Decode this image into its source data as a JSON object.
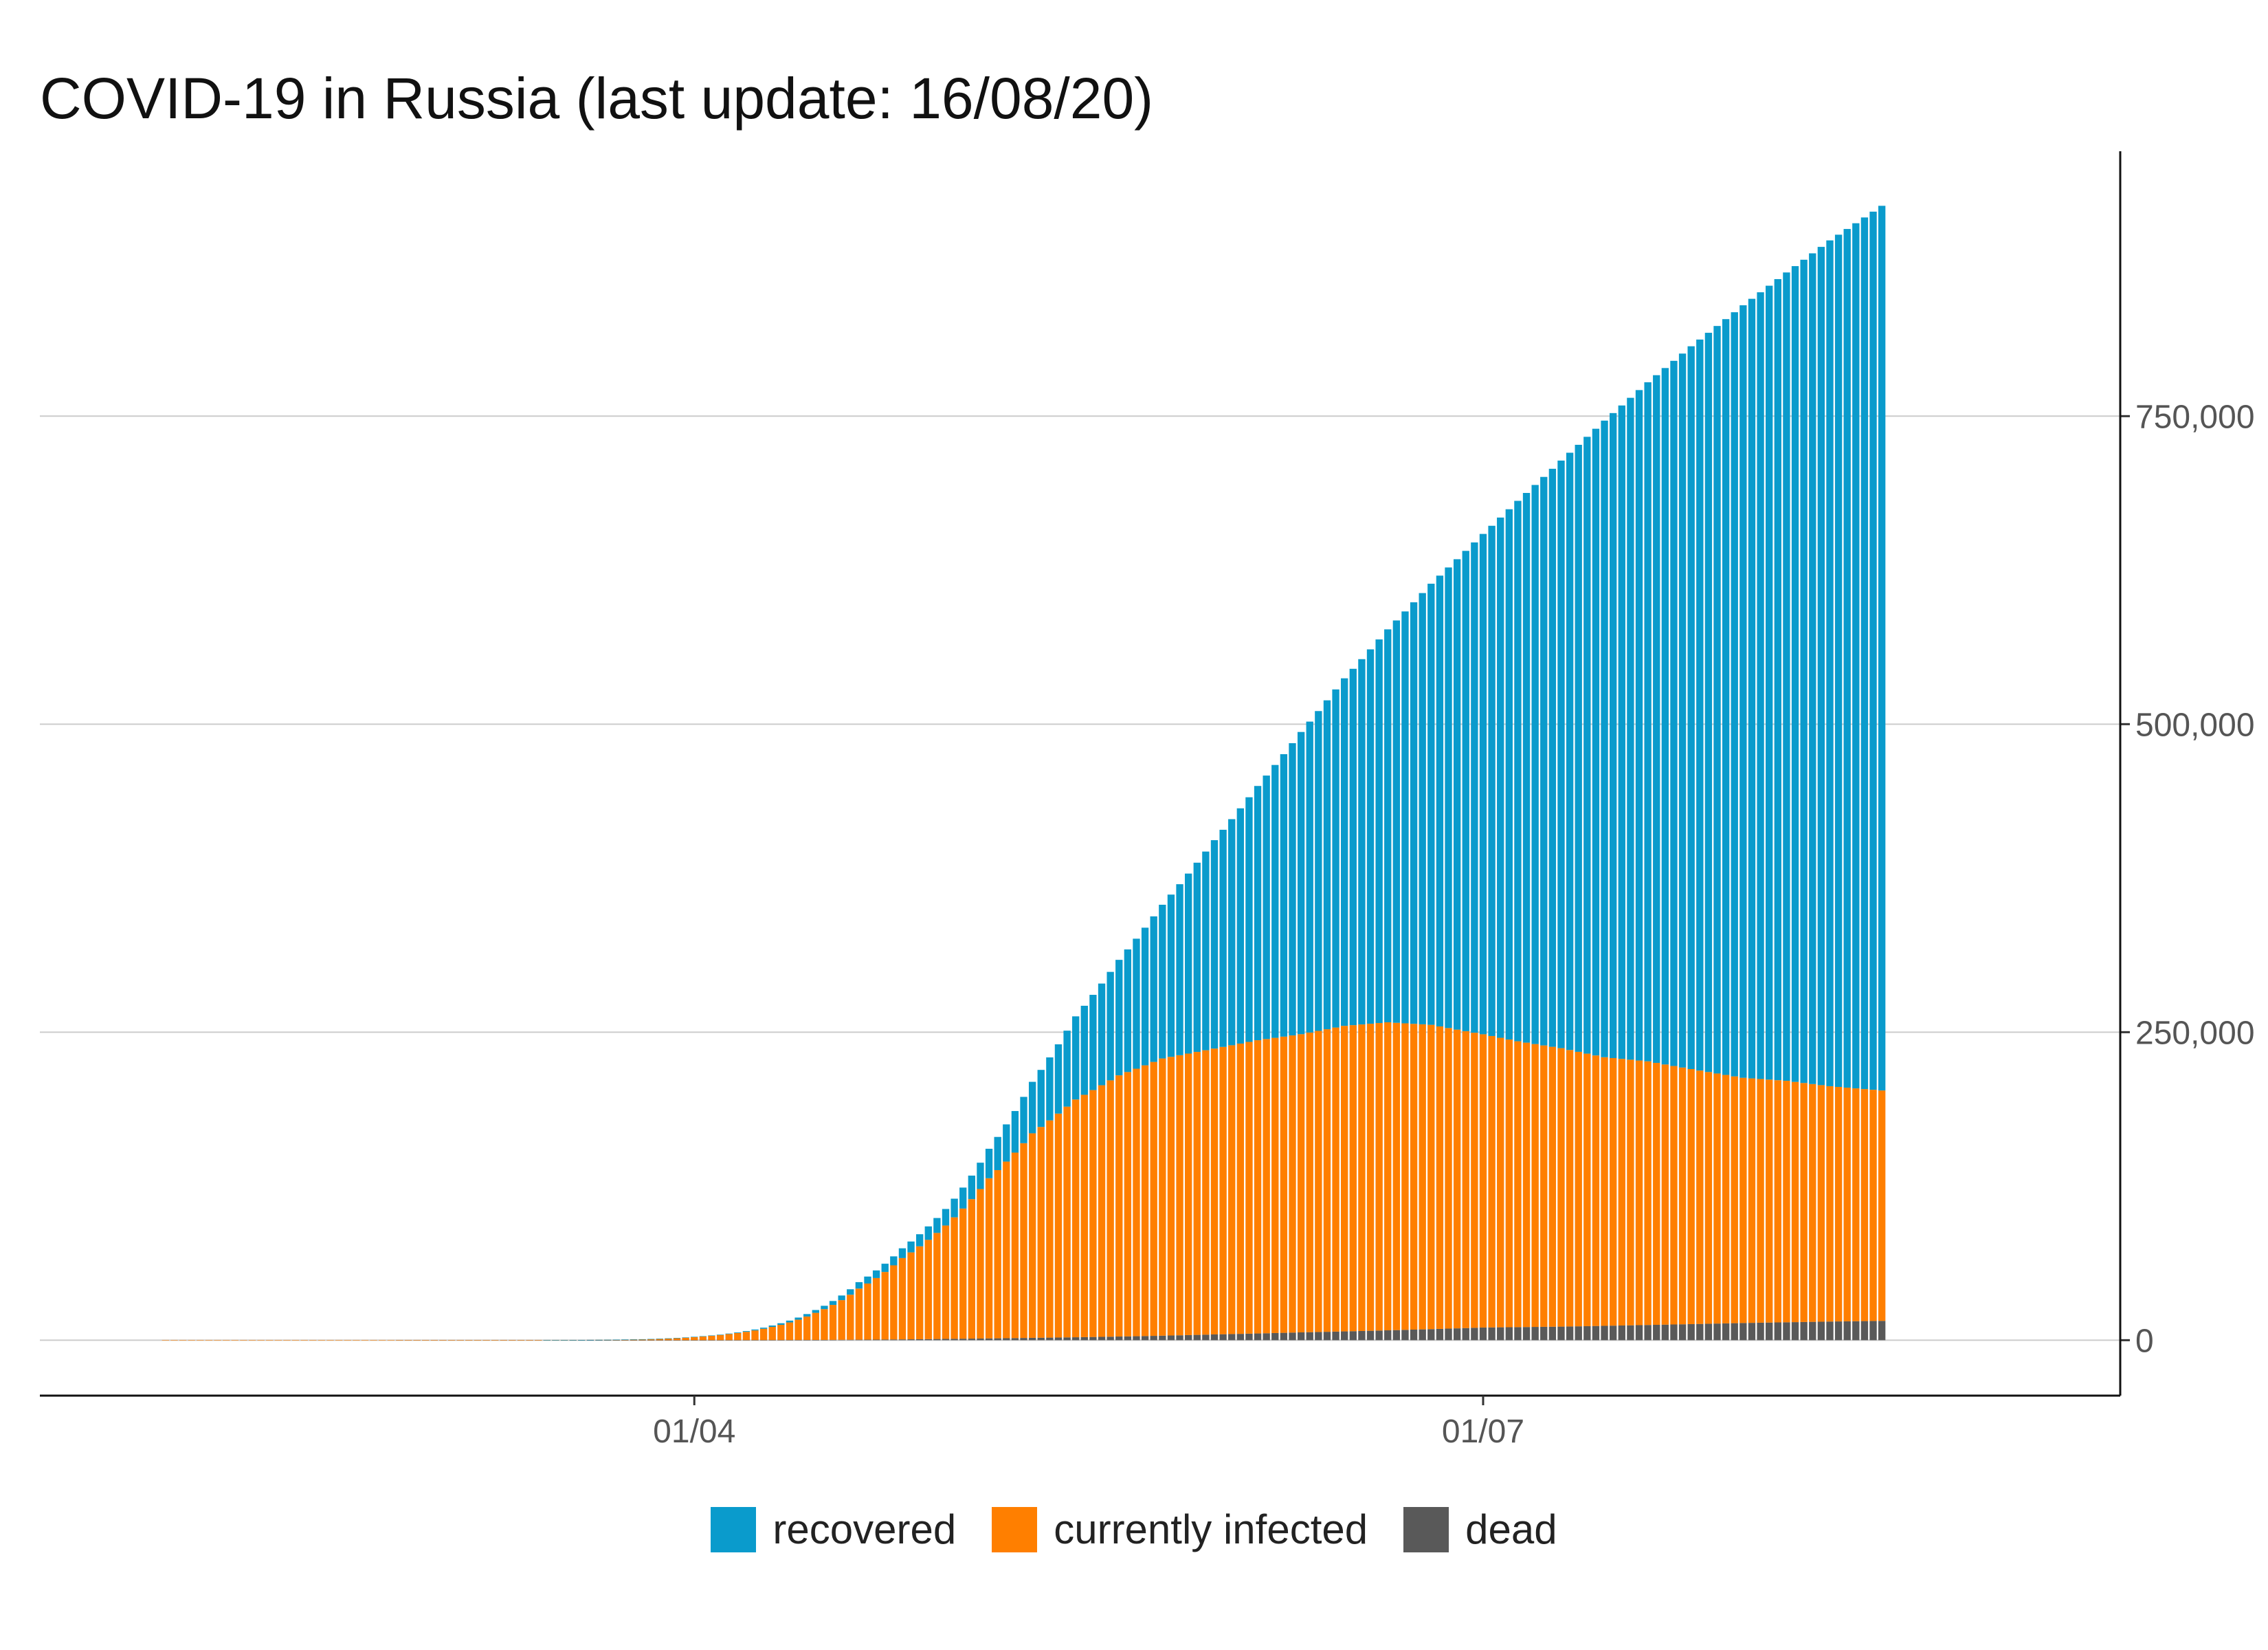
{
  "chart_data": {
    "type": "bar",
    "stacked": true,
    "title": "COVID-19 in Russia (last update: 16/08/20)",
    "xlabel": "",
    "ylabel": "",
    "x_start": "2020-01-31",
    "x_end": "2020-08-16",
    "x_ticks": [
      {
        "date": "2020-04-01",
        "label": "01/04"
      },
      {
        "date": "2020-07-01",
        "label": "01/07"
      }
    ],
    "ylim": [
      -45000,
      965000
    ],
    "y_ticks": [
      {
        "value": 0,
        "label": "0"
      },
      {
        "value": 250000,
        "label": "250,000"
      },
      {
        "value": 500000,
        "label": "500,000"
      },
      {
        "value": 750000,
        "label": "750,000"
      }
    ],
    "y_axis_position": "right",
    "grid": "horizontal",
    "legend_position": "bottom",
    "colors": {
      "recovered": "#0a9bcc",
      "infected": "#ff7f00",
      "dead": "#595959"
    },
    "series_order": [
      "dead",
      "infected",
      "recovered"
    ],
    "legend": [
      {
        "key": "recovered",
        "label": "recovered"
      },
      {
        "key": "infected",
        "label": "currently infected"
      },
      {
        "key": "dead",
        "label": "dead"
      }
    ],
    "total_knots": [
      [
        "2020-01-31",
        2
      ],
      [
        "2020-03-01",
        3
      ],
      [
        "2020-03-10",
        20
      ],
      [
        "2020-03-20",
        253
      ],
      [
        "2020-03-25",
        658
      ],
      [
        "2020-04-01",
        2777
      ],
      [
        "2020-04-05",
        5389
      ],
      [
        "2020-04-10",
        11917
      ],
      [
        "2020-04-15",
        24490
      ],
      [
        "2020-04-20",
        47121
      ],
      [
        "2020-04-25",
        74588
      ],
      [
        "2020-04-30",
        106498
      ],
      [
        "2020-05-05",
        155370
      ],
      [
        "2020-05-10",
        209688
      ],
      [
        "2020-05-15",
        262843
      ],
      [
        "2020-05-20",
        308705
      ],
      [
        "2020-05-25",
        353427
      ],
      [
        "2020-05-31",
        405843
      ],
      [
        "2020-06-05",
        449834
      ],
      [
        "2020-06-10",
        493657
      ],
      [
        "2020-06-15",
        537210
      ],
      [
        "2020-06-20",
        576952
      ],
      [
        "2020-06-25",
        613994
      ],
      [
        "2020-07-01",
        654405
      ],
      [
        "2020-07-05",
        681251
      ],
      [
        "2020-07-10",
        713936
      ],
      [
        "2020-07-15",
        746369
      ],
      [
        "2020-07-20",
        777486
      ],
      [
        "2020-07-25",
        806720
      ],
      [
        "2020-07-31",
        839981
      ],
      [
        "2020-08-05",
        866627
      ],
      [
        "2020-08-10",
        892654
      ],
      [
        "2020-08-16",
        920719
      ]
    ],
    "infected_knots": [
      [
        "2020-01-31",
        2
      ],
      [
        "2020-03-01",
        3
      ],
      [
        "2020-03-10",
        20
      ],
      [
        "2020-03-20",
        240
      ],
      [
        "2020-03-25",
        630
      ],
      [
        "2020-04-01",
        2560
      ],
      [
        "2020-04-05",
        4950
      ],
      [
        "2020-04-10",
        10700
      ],
      [
        "2020-04-15",
        22000
      ],
      [
        "2020-04-20",
        41500
      ],
      [
        "2020-04-25",
        66000
      ],
      [
        "2020-04-30",
        92000
      ],
      [
        "2020-05-05",
        130000
      ],
      [
        "2020-05-10",
        166000
      ],
      [
        "2020-05-15",
        193000
      ],
      [
        "2020-05-20",
        212000
      ],
      [
        "2020-05-25",
        225000
      ],
      [
        "2020-05-31",
        232000
      ],
      [
        "2020-06-05",
        238000
      ],
      [
        "2020-06-10",
        242000
      ],
      [
        "2020-06-15",
        248000
      ],
      [
        "2020-06-20",
        250000
      ],
      [
        "2020-06-25",
        247000
      ],
      [
        "2020-07-01",
        238000
      ],
      [
        "2020-07-05",
        232000
      ],
      [
        "2020-07-10",
        226000
      ],
      [
        "2020-07-15",
        218000
      ],
      [
        "2020-07-20",
        214000
      ],
      [
        "2020-07-25",
        207000
      ],
      [
        "2020-07-31",
        199000
      ],
      [
        "2020-08-05",
        196000
      ],
      [
        "2020-08-10",
        191000
      ],
      [
        "2020-08-16",
        187000
      ]
    ],
    "dead_knots": [
      [
        "2020-01-31",
        0
      ],
      [
        "2020-03-24",
        1
      ],
      [
        "2020-04-01",
        24
      ],
      [
        "2020-04-10",
        94
      ],
      [
        "2020-04-20",
        405
      ],
      [
        "2020-04-30",
        1073
      ],
      [
        "2020-05-10",
        1915
      ],
      [
        "2020-05-20",
        2972
      ],
      [
        "2020-05-31",
        4693
      ],
      [
        "2020-06-10",
        6358
      ],
      [
        "2020-06-20",
        8002
      ],
      [
        "2020-07-01",
        10296
      ],
      [
        "2020-07-10",
        11017
      ],
      [
        "2020-07-20",
        12342
      ],
      [
        "2020-07-31",
        13963
      ],
      [
        "2020-08-10",
        15131
      ],
      [
        "2020-08-16",
        15685
      ]
    ]
  }
}
